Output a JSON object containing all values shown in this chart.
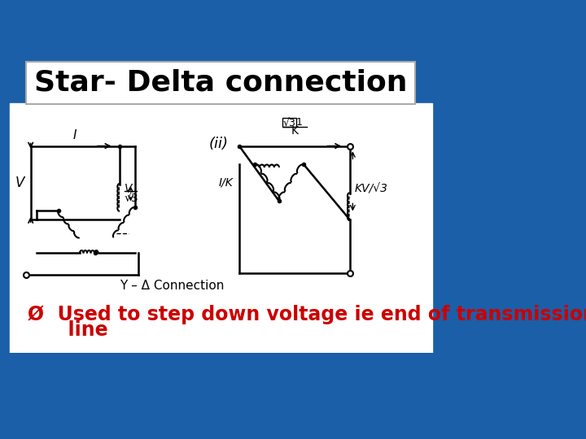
{
  "title": "Star- Delta connection",
  "title_fontsize": 26,
  "title_fontweight": "bold",
  "bg_color": "#1a5fa8",
  "bullet_text_line1": "Ø  Used to step down voltage ie end of transmission",
  "bullet_text_line2": "      line",
  "bullet_color": "#cc0000",
  "bullet_fontsize": 17,
  "bullet_fontweight": "bold",
  "diagram_label": "Y – Δ Connection",
  "diagram_label_fontsize": 11,
  "ii_label": "(ii)",
  "ii_fontsize": 13
}
